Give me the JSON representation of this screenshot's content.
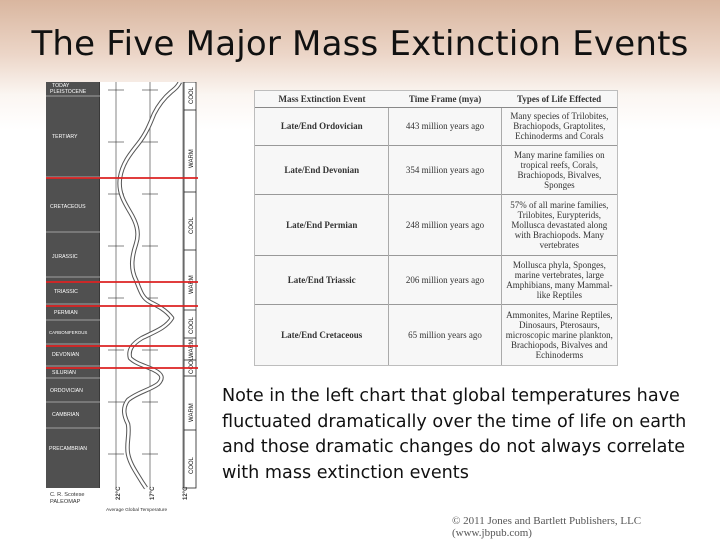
{
  "slide": {
    "title": "The Five Major Mass Extinction Events",
    "note": "Note in the left chart that global temperatures have fluctuated dramatically over the time of life on earth and those dramatic changes do not always correlate with mass extinction events",
    "credit": "© 2011 Jones and Bartlett Publishers, LLC (www.jbpub.com)"
  },
  "chart": {
    "periods": [
      "TODAY",
      "PLEISTOCENE",
      "TERTIARY",
      "CRETACEOUS",
      "JURASSIC",
      "TRIASSIC",
      "PERMIAN",
      "CARBONIFEROUS",
      "DEVONIAN",
      "SILURIAN",
      "ORDOVICIAN",
      "CAMBRIAN",
      "PRECAMBRIAN"
    ],
    "climate_labels": [
      "COOL",
      "WARM",
      "COOL",
      "WARM",
      "COOL",
      "WARM",
      "COOL",
      "WARM",
      "COOL"
    ],
    "temp_labels": [
      "22°C",
      "17°C",
      "12°C"
    ],
    "author_line1": "C. R. Scotese",
    "author_line2": "PALEOMAP",
    "axis_label": "Average Global Temperature"
  },
  "table": {
    "headers": [
      "Mass Extinction Event",
      "Time Frame (mya)",
      "Types of Life Effected"
    ],
    "rows": [
      {
        "event": "Late/End Ordovician",
        "time": "443 million years ago",
        "life": "Many species of Trilobites, Brachiopods, Graptolites, Echinoderms and Corals"
      },
      {
        "event": "Late/End Devonian",
        "time": "354 million years ago",
        "life": "Many marine families on tropical reefs, Corals, Brachiopods, Bivalves, Sponges"
      },
      {
        "event": "Late/End Permian",
        "time": "248 million years ago",
        "life": "57% of all marine families, Trilobites, Eurypterids, Mollusca devastated along with Brachiopods. Many vertebrates"
      },
      {
        "event": "Late/End Triassic",
        "time": "206 million years ago",
        "life": "Mollusca phyla, Sponges, marine vertebrates, large Amphibians, many Mammal-like Reptiles"
      },
      {
        "event": "Late/End Cretaceous",
        "time": "65 million years ago",
        "life": "Ammonites, Marine Reptiles, Dinosaurs, Pterosaurs, microscopic marine plankton, Brachiopods, Bivalves and Echinoderms"
      }
    ]
  }
}
